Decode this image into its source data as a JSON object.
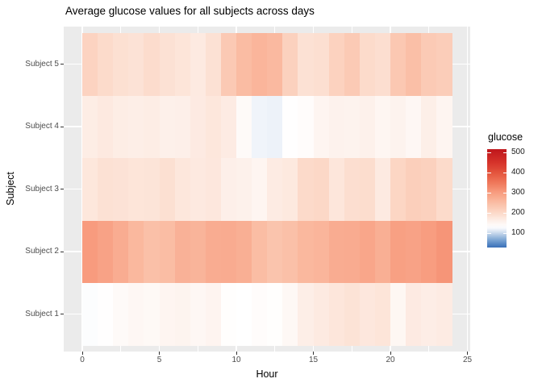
{
  "title": "Average glucose values for all subjects across days",
  "x_axis": {
    "label": "Hour",
    "major_ticks": [
      0,
      5,
      10,
      15,
      20,
      25
    ],
    "minor_ticks": [
      2.5,
      7.5,
      12.5,
      17.5,
      22.5
    ],
    "range": [
      0,
      25
    ]
  },
  "y_axis": {
    "label": "Subject",
    "categories": [
      "Subject 1",
      "Subject 2",
      "Subject 3",
      "Subject 4",
      "Subject 5"
    ]
  },
  "legend": {
    "title": "glucose",
    "tick_values": [
      500,
      400,
      300,
      200,
      100
    ],
    "bar_top_value": 516,
    "bar_bottom_value": 28
  },
  "palette": {
    "panel_bg": "#EBEBEB",
    "gridline": "#FFFFFF",
    "tick_color": "#333333",
    "tick_label_color": "#4D4D4D",
    "text_color": "#000000",
    "anchors": [
      [
        28,
        "#3a6fb7"
      ],
      [
        50,
        "#5c8ec8"
      ],
      [
        75,
        "#90b3da"
      ],
      [
        100,
        "#c9d9ec"
      ],
      [
        115,
        "#e9eff7"
      ],
      [
        130,
        "#ffffff"
      ],
      [
        160,
        "#fdf0ea"
      ],
      [
        200,
        "#fcd9c8"
      ],
      [
        250,
        "#fabda4"
      ],
      [
        300,
        "#f89d80"
      ],
      [
        350,
        "#ef775a"
      ],
      [
        400,
        "#e4543d"
      ],
      [
        450,
        "#d5322a"
      ],
      [
        516,
        "#bf161c"
      ]
    ]
  },
  "chart_data": {
    "type": "heatmap",
    "title": "Average glucose values for all subjects across days",
    "xlabel": "Hour",
    "ylabel": "Subject",
    "x_hours": [
      0,
      1,
      2,
      3,
      4,
      5,
      6,
      7,
      8,
      9,
      10,
      11,
      12,
      13,
      14,
      15,
      16,
      17,
      18,
      19,
      20,
      21,
      22,
      23
    ],
    "value_name": "glucose",
    "rows": [
      {
        "name": "Subject 1",
        "values": [
          128,
          132,
          140,
          146,
          143,
          150,
          153,
          146,
          152,
          133,
          130,
          136,
          133,
          144,
          163,
          171,
          178,
          183,
          175,
          180,
          147,
          170,
          165,
          168
        ]
      },
      {
        "name": "Subject 2",
        "values": [
          302,
          292,
          276,
          258,
          244,
          250,
          268,
          264,
          276,
          278,
          272,
          250,
          238,
          244,
          258,
          262,
          276,
          278,
          286,
          272,
          296,
          292,
          300,
          310
        ]
      },
      {
        "name": "Subject 3",
        "values": [
          176,
          186,
          184,
          180,
          181,
          188,
          176,
          172,
          175,
          161,
          158,
          150,
          168,
          173,
          198,
          201,
          178,
          191,
          193,
          171,
          206,
          218,
          214,
          196
        ]
      },
      {
        "name": "Subject 4",
        "values": [
          166,
          172,
          166,
          164,
          166,
          160,
          161,
          170,
          176,
          168,
          140,
          120,
          118,
          132,
          136,
          150,
          156,
          154,
          158,
          148,
          154,
          146,
          162,
          150
        ]
      },
      {
        "name": "Subject 5",
        "values": [
          210,
          196,
          188,
          184,
          194,
          186,
          180,
          171,
          186,
          228,
          252,
          262,
          256,
          214,
          186,
          190,
          212,
          226,
          196,
          191,
          230,
          246,
          227,
          221
        ]
      }
    ]
  }
}
